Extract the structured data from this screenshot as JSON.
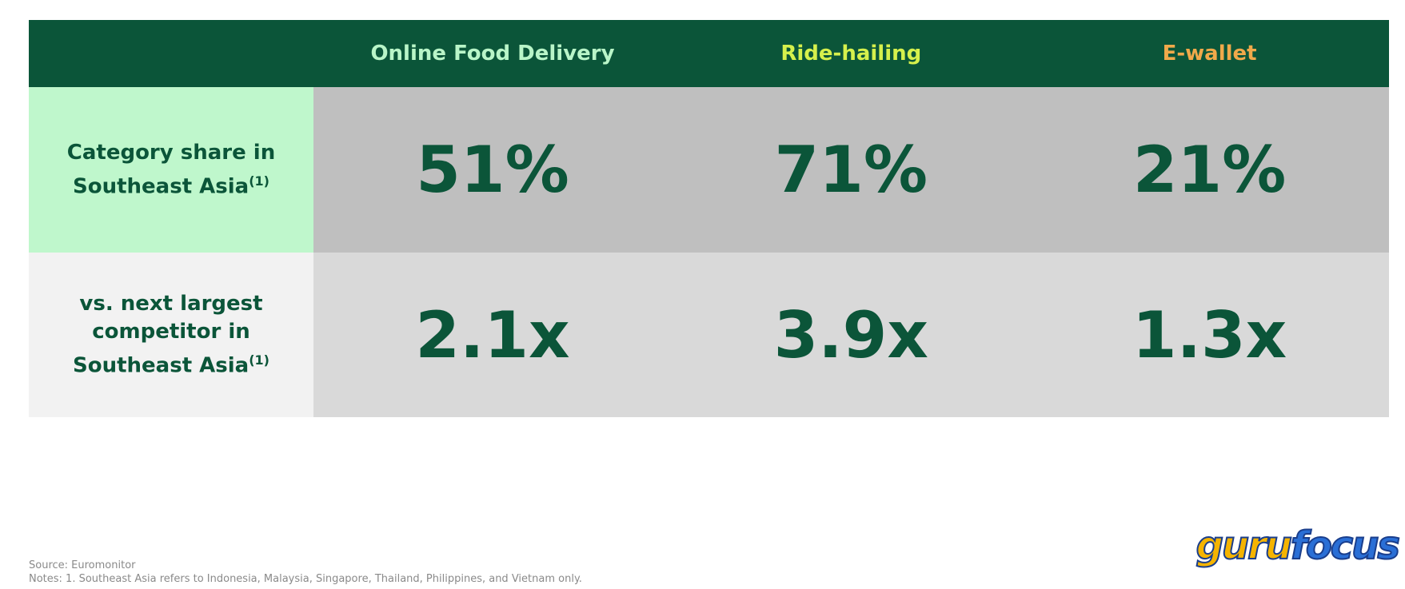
{
  "table": {
    "columns": [
      {
        "label": "Online Food Delivery",
        "color": "#b9f5c8"
      },
      {
        "label": "Ride-hailing",
        "color": "#d6f04c"
      },
      {
        "label": "E-wallet",
        "color": "#f0a94a"
      }
    ],
    "rows": [
      {
        "label_lines": [
          "Category share in",
          "Southeast Asia"
        ],
        "note": "(1)",
        "cells": [
          "51%",
          "71%",
          "21%"
        ]
      },
      {
        "label_lines": [
          "vs. next largest",
          "competitor in",
          "Southeast Asia"
        ],
        "note": "(1)",
        "cells": [
          "2.1x",
          "3.9x",
          "1.3x"
        ]
      }
    ]
  },
  "footer": {
    "source": "Source: Euromonitor",
    "notes": "Notes: 1. Southeast Asia refers to Indonesia, Malaysia, Singapore, Thailand, Philippines, and Vietnam only."
  },
  "logo": {
    "parts": [
      "guru",
      "focus"
    ]
  }
}
